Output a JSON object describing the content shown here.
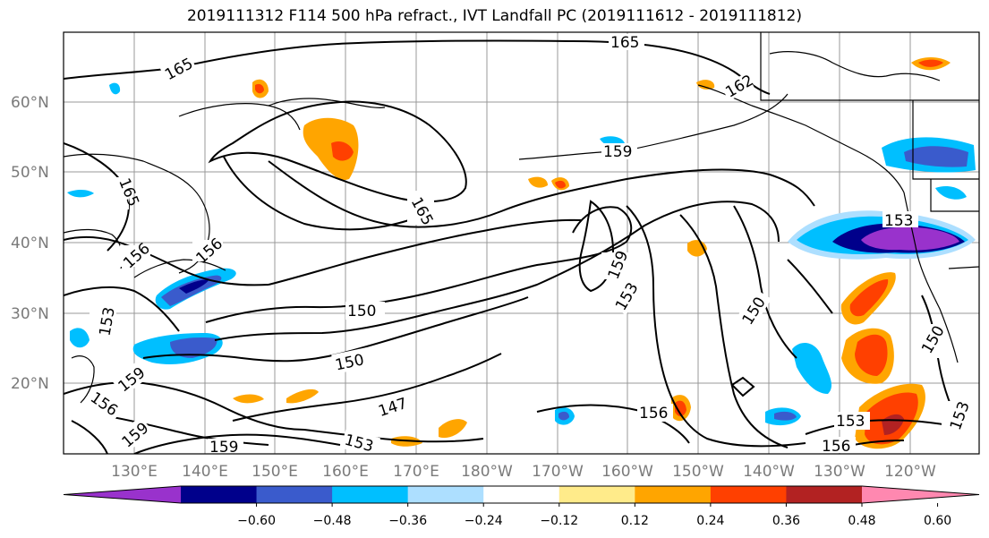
{
  "title": "2019111312 F114 500 hPa refract., IVT Landfall PC (2019111612 - 2019111812)",
  "lat_labels": [
    "60°N",
    "50°N",
    "40°N",
    "30°N",
    "20°N"
  ],
  "lon_labels": [
    "130°E",
    "140°E",
    "150°E",
    "160°E",
    "170°E",
    "180°W",
    "170°W",
    "160°W",
    "150°W",
    "140°W",
    "130°W",
    "120°W"
  ],
  "contour_labels": [
    "165",
    "165",
    "162",
    "165",
    "165",
    "159",
    "156",
    "156",
    "153",
    "150",
    "150",
    "147",
    "153",
    "159",
    "159",
    "159",
    "156",
    "153",
    "150",
    "153",
    "156",
    "153",
    "150",
    "159",
    "156",
    "153"
  ],
  "colorbar": {
    "colors": [
      "#9932CC",
      "#00008B",
      "#3A5BCC",
      "#00BFFF",
      "#ADDFFF",
      "#FFFFFF",
      "#FFEB8A",
      "#FFA500",
      "#FF4000",
      "#B22222",
      "#FF88B0"
    ],
    "tick_labels": [
      "-0.60",
      "-0.48",
      "-0.36",
      "-0.24",
      "-0.12",
      "0.12",
      "0.24",
      "0.36",
      "0.48",
      "0.60"
    ]
  }
}
